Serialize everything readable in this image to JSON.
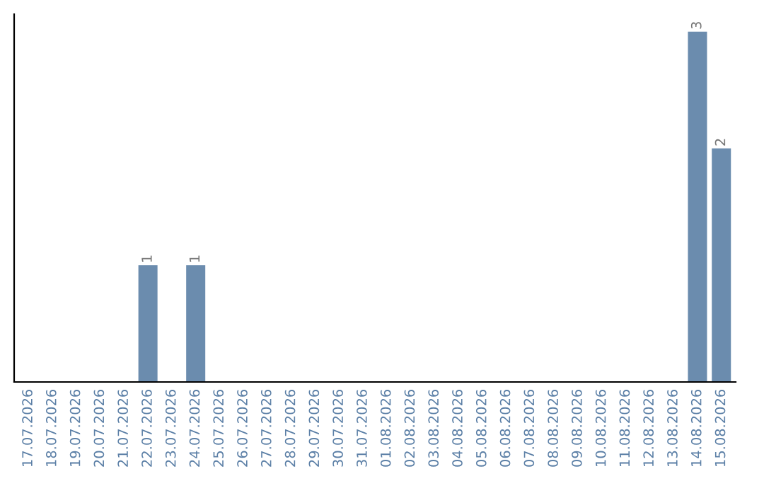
{
  "chart_data": {
    "type": "bar",
    "categories": [
      "17.07.2026",
      "18.07.2026",
      "19.07.2026",
      "20.07.2026",
      "21.07.2026",
      "22.07.2026",
      "23.07.2026",
      "24.07.2026",
      "25.07.2026",
      "26.07.2026",
      "27.07.2026",
      "28.07.2026",
      "29.07.2026",
      "30.07.2026",
      "31.07.2026",
      "01.08.2026",
      "02.08.2026",
      "03.08.2026",
      "04.08.2026",
      "05.08.2026",
      "06.08.2026",
      "07.08.2026",
      "08.08.2026",
      "09.08.2026",
      "10.08.2026",
      "11.08.2026",
      "12.08.2026",
      "13.08.2026",
      "14.08.2026",
      "15.08.2026"
    ],
    "values": [
      0,
      0,
      0,
      0,
      0,
      1,
      0,
      1,
      0,
      0,
      0,
      0,
      0,
      0,
      0,
      0,
      0,
      0,
      0,
      0,
      0,
      0,
      0,
      0,
      0,
      0,
      0,
      0,
      3,
      2
    ],
    "value_labels": [
      null,
      null,
      null,
      null,
      null,
      "1",
      null,
      "1",
      null,
      null,
      null,
      null,
      null,
      null,
      null,
      null,
      null,
      null,
      null,
      null,
      null,
      null,
      null,
      null,
      null,
      null,
      null,
      null,
      "3",
      "2"
    ],
    "color": "#6b8cae",
    "grid": false,
    "legend": false,
    "tick_labels": "x"
  }
}
